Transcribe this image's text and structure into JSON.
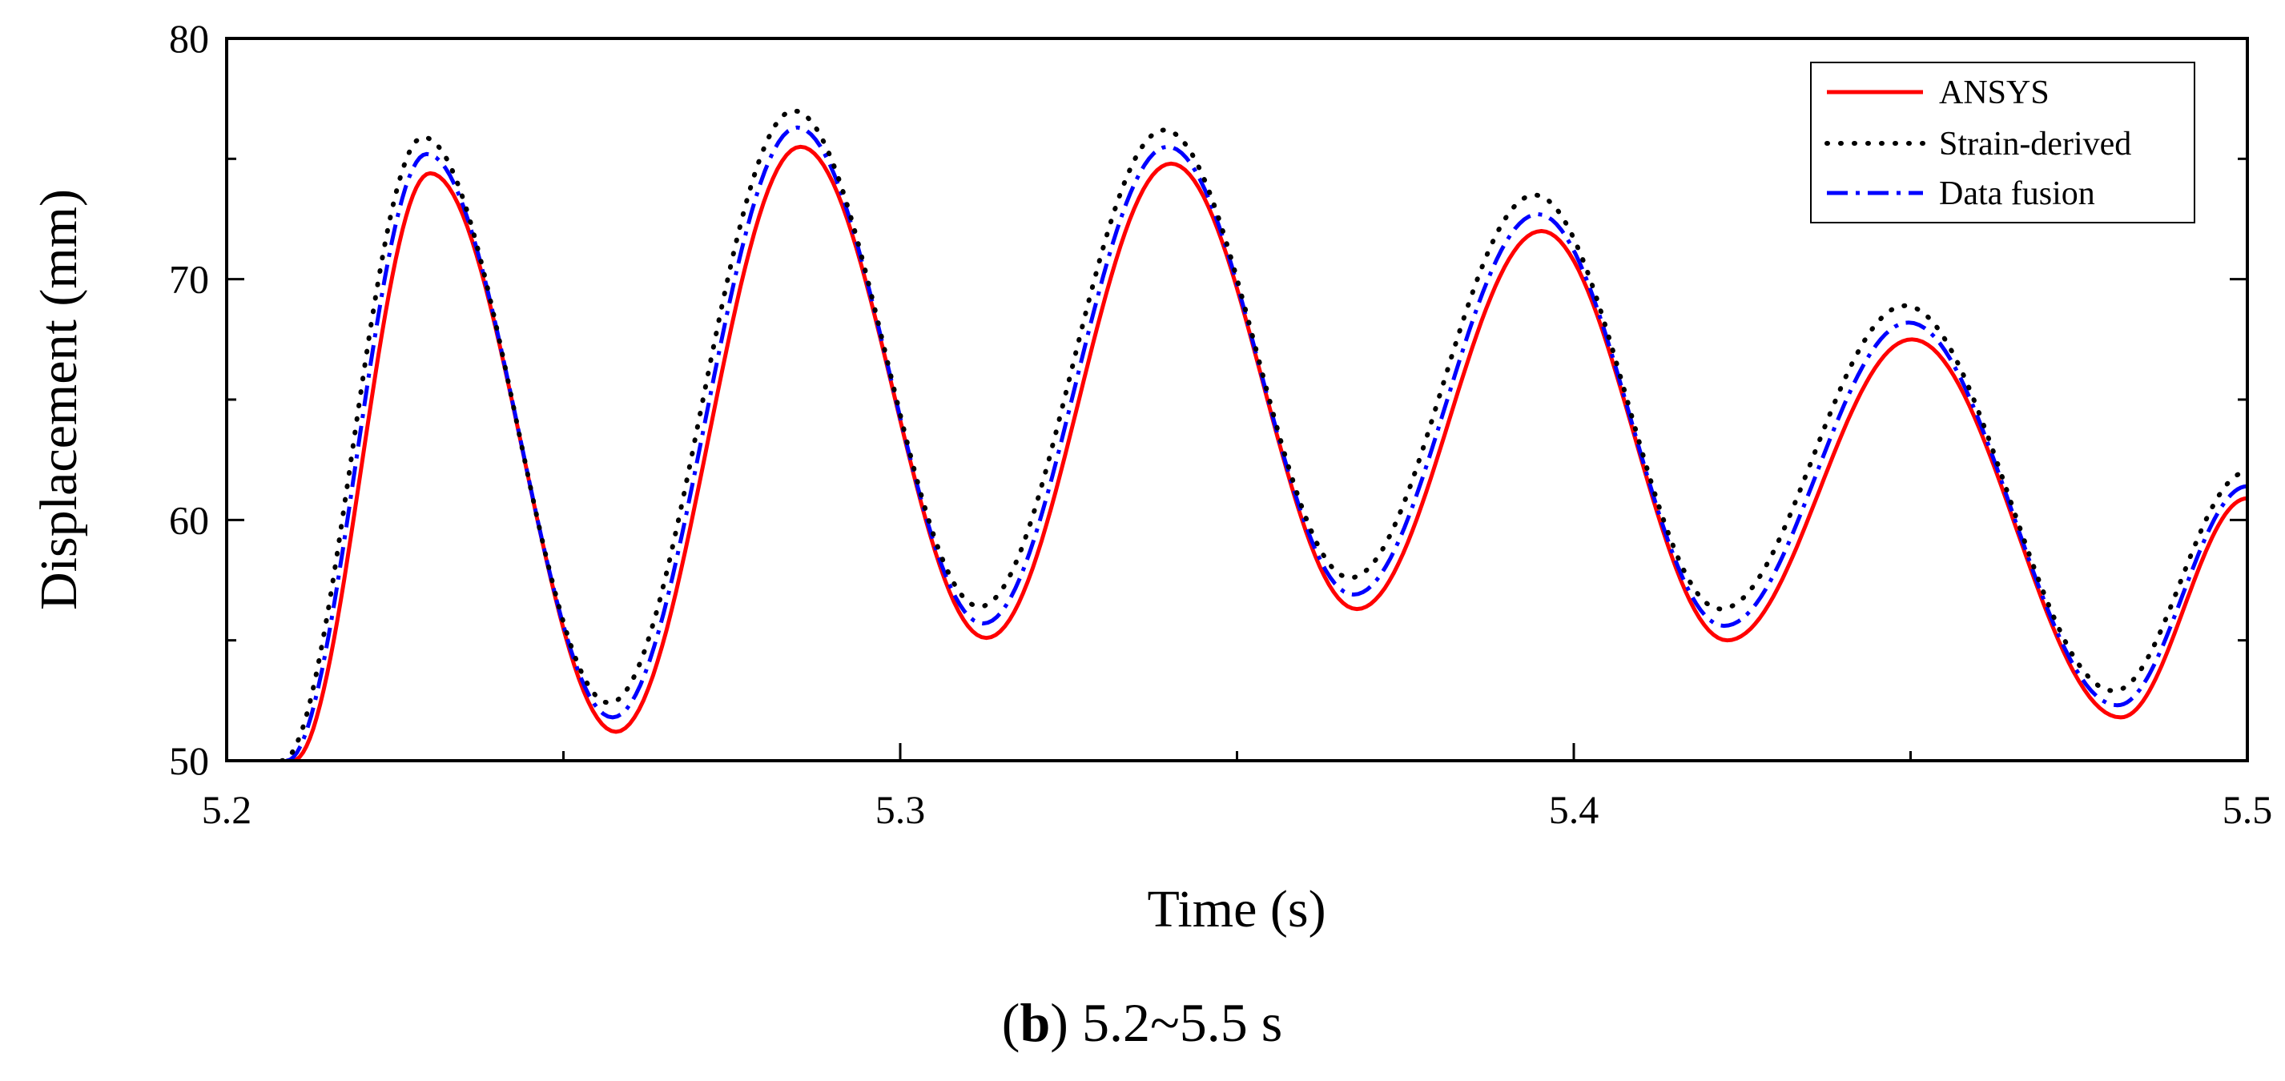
{
  "caption": {
    "open": "(",
    "letter": "b",
    "close": ")",
    "text": " 5.2~5.5 s"
  },
  "chart_data": {
    "type": "line",
    "title": "",
    "xlabel": "Time (s)",
    "ylabel": "Displacement (mm)",
    "xlim": [
      5.2,
      5.5
    ],
    "ylim": [
      50,
      80
    ],
    "xticks": [
      5.2,
      5.3,
      5.4,
      5.5
    ],
    "xtick_labels": [
      "5.2",
      "5.3",
      "5.4",
      "5.5"
    ],
    "yticks": [
      50,
      60,
      70,
      80
    ],
    "ytick_labels": [
      "50",
      "60",
      "70",
      "80"
    ],
    "grid": false,
    "legend_position": "top-right",
    "series": [
      {
        "name": "ANSYS",
        "color": "#ff0000",
        "style": "solid",
        "points": [
          [
            5.2098,
            50.0
          ],
          [
            5.2302,
            74.4
          ],
          [
            5.2578,
            51.2
          ],
          [
            5.2852,
            75.5
          ],
          [
            5.3128,
            55.1
          ],
          [
            5.3402,
            74.8
          ],
          [
            5.3678,
            56.3
          ],
          [
            5.3952,
            72.0
          ],
          [
            5.4228,
            55.0
          ],
          [
            5.4502,
            67.5
          ],
          [
            5.4812,
            51.8
          ],
          [
            5.5,
            60.9
          ]
        ]
      },
      {
        "name": "Strain-derived",
        "color": "#000000",
        "style": "dotted",
        "points": [
          [
            5.2082,
            50.0
          ],
          [
            5.2292,
            75.9
          ],
          [
            5.2568,
            52.4
          ],
          [
            5.2842,
            77.0
          ],
          [
            5.3118,
            56.4
          ],
          [
            5.3392,
            76.2
          ],
          [
            5.3668,
            57.6
          ],
          [
            5.3942,
            73.5
          ],
          [
            5.4218,
            56.3
          ],
          [
            5.4492,
            68.9
          ],
          [
            5.4802,
            52.9
          ],
          [
            5.5,
            62.0
          ]
        ]
      },
      {
        "name": "Data fusion",
        "color": "#0000ff",
        "style": "dashdot",
        "points": [
          [
            5.2089,
            50.0
          ],
          [
            5.2297,
            75.2
          ],
          [
            5.2573,
            51.8
          ],
          [
            5.2847,
            76.3
          ],
          [
            5.3123,
            55.7
          ],
          [
            5.3397,
            75.5
          ],
          [
            5.3673,
            56.9
          ],
          [
            5.3947,
            72.7
          ],
          [
            5.4223,
            55.6
          ],
          [
            5.4497,
            68.2
          ],
          [
            5.4807,
            52.3
          ],
          [
            5.5,
            61.4
          ]
        ]
      }
    ]
  }
}
